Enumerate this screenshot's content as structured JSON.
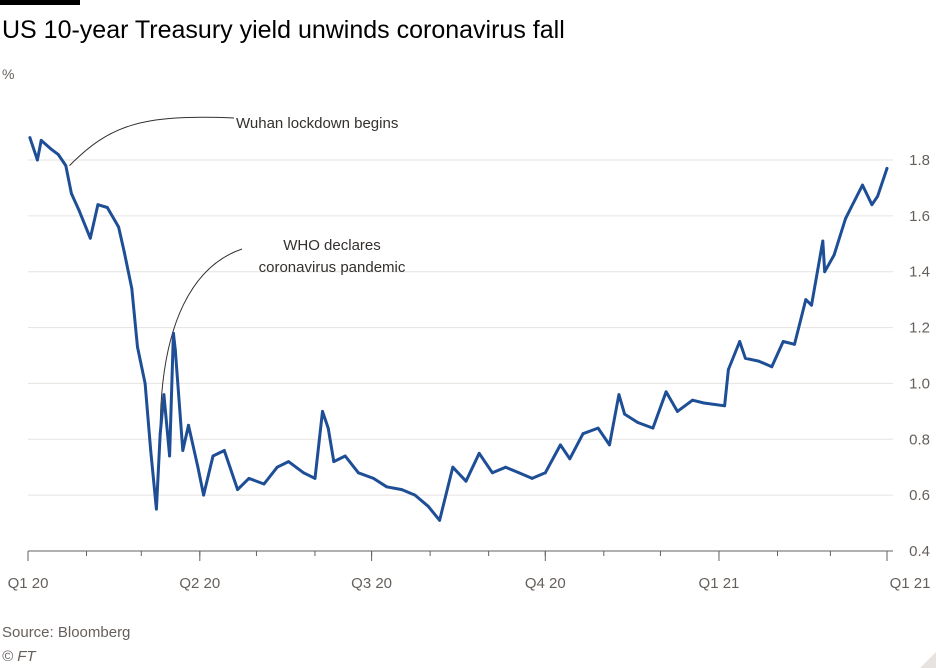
{
  "header": {
    "title": "US 10-year Treasury yield unwinds coronavirus fall",
    "unit": "%"
  },
  "footer": {
    "source": "Source: Bloomberg",
    "credit": "© FT"
  },
  "colors": {
    "line": "#1e4e96",
    "grid": "#e6e3e0",
    "axis": "#66605c",
    "background": "#ffffff"
  },
  "chart_data": {
    "type": "line",
    "title": "US 10-year Treasury yield unwinds coronavirus fall",
    "ylabel": "%",
    "ylim": [
      0.4,
      1.8
    ],
    "yticks": [
      0.4,
      0.6,
      0.8,
      1.0,
      1.2,
      1.4,
      1.6,
      1.8
    ],
    "ytick_labels": [
      "0.4",
      "0.6",
      "0.8",
      "1.0",
      "1.2",
      "1.4",
      "1.6",
      "1.8"
    ],
    "y_axis_side": "right",
    "grid": true,
    "xticks": [
      "2020-01-01",
      "2020-04-01",
      "2020-07-01",
      "2020-10-01",
      "2021-01-01",
      "2021-03-31"
    ],
    "xtick_labels": [
      "Q1 20",
      "Q2 20",
      "Q3 20",
      "Q4 20",
      "Q1 21",
      "Q1 21"
    ],
    "series": [
      {
        "x": [
          "2020-01-02",
          "2020-01-06",
          "2020-01-08",
          "2020-01-13",
          "2020-01-17",
          "2020-01-21",
          "2020-01-24",
          "2020-01-28",
          "2020-02-03",
          "2020-02-07",
          "2020-02-12",
          "2020-02-18",
          "2020-02-21",
          "2020-02-25",
          "2020-02-28",
          "2020-03-03",
          "2020-03-06",
          "2020-03-09",
          "2020-03-11",
          "2020-03-13",
          "2020-03-16",
          "2020-03-18",
          "2020-03-19",
          "2020-03-23",
          "2020-03-26",
          "2020-03-31",
          "2020-04-03",
          "2020-04-08",
          "2020-04-14",
          "2020-04-21",
          "2020-04-27",
          "2020-05-05",
          "2020-05-12",
          "2020-05-18",
          "2020-05-26",
          "2020-06-01",
          "2020-06-05",
          "2020-06-08",
          "2020-06-11",
          "2020-06-17",
          "2020-06-24",
          "2020-07-02",
          "2020-07-09",
          "2020-07-17",
          "2020-07-24",
          "2020-07-31",
          "2020-08-06",
          "2020-08-13",
          "2020-08-20",
          "2020-08-27",
          "2020-09-03",
          "2020-09-10",
          "2020-09-17",
          "2020-09-24",
          "2020-10-01",
          "2020-10-09",
          "2020-10-14",
          "2020-10-21",
          "2020-10-29",
          "2020-11-04",
          "2020-11-09",
          "2020-11-12",
          "2020-11-19",
          "2020-11-27",
          "2020-12-04",
          "2020-12-10",
          "2020-12-18",
          "2020-12-24",
          "2021-01-04",
          "2021-01-06",
          "2021-01-12",
          "2021-01-15",
          "2021-01-22",
          "2021-01-29",
          "2021-02-04",
          "2021-02-10",
          "2021-02-16",
          "2021-02-19",
          "2021-02-25",
          "2021-02-26",
          "2021-03-03",
          "2021-03-09",
          "2021-03-12",
          "2021-03-18",
          "2021-03-23",
          "2021-03-26",
          "2021-03-31"
        ],
        "values": [
          1.88,
          1.8,
          1.87,
          1.84,
          1.82,
          1.78,
          1.68,
          1.62,
          1.52,
          1.64,
          1.63,
          1.56,
          1.47,
          1.34,
          1.13,
          1.0,
          0.76,
          0.55,
          0.82,
          0.96,
          0.74,
          1.18,
          1.12,
          0.76,
          0.85,
          0.7,
          0.6,
          0.74,
          0.76,
          0.62,
          0.66,
          0.64,
          0.7,
          0.72,
          0.68,
          0.66,
          0.9,
          0.84,
          0.72,
          0.74,
          0.68,
          0.66,
          0.63,
          0.62,
          0.6,
          0.56,
          0.51,
          0.7,
          0.65,
          0.75,
          0.68,
          0.7,
          0.68,
          0.66,
          0.68,
          0.78,
          0.73,
          0.82,
          0.84,
          0.78,
          0.96,
          0.89,
          0.86,
          0.84,
          0.97,
          0.9,
          0.94,
          0.93,
          0.92,
          1.05,
          1.15,
          1.09,
          1.08,
          1.06,
          1.15,
          1.14,
          1.3,
          1.28,
          1.51,
          1.4,
          1.46,
          1.59,
          1.63,
          1.71,
          1.64,
          1.67,
          1.77
        ]
      }
    ],
    "annotations": [
      {
        "lines": [
          "Wuhan lockdown begins"
        ],
        "x": "2020-01-23",
        "y": 1.78
      },
      {
        "lines": [
          "WHO declares",
          "coronavirus pandemic"
        ],
        "x": "2020-03-11",
        "y": 0.82
      }
    ]
  }
}
